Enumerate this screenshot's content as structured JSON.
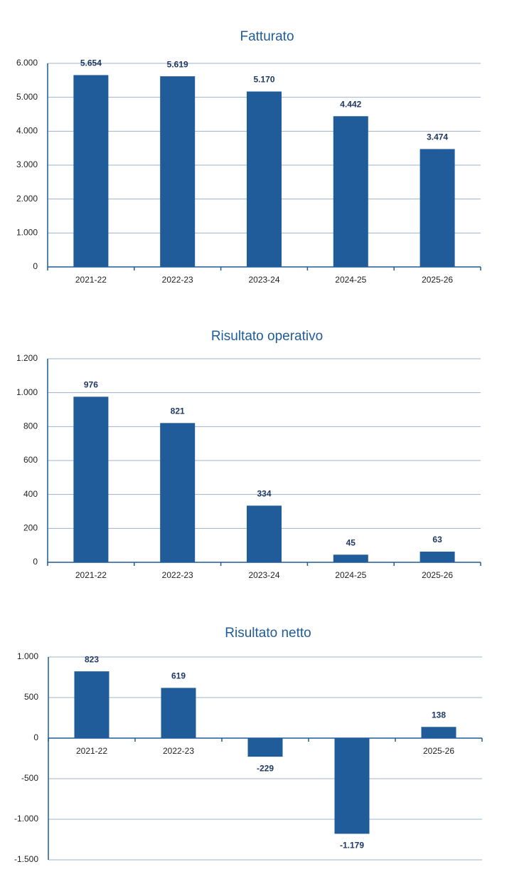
{
  "chart_data": [
    {
      "type": "bar",
      "title": "Fatturato",
      "categories": [
        "2021-22",
        "2022-23",
        "2023-24",
        "2024-25",
        "2025-26"
      ],
      "values": [
        5654,
        5619,
        5170,
        4442,
        3474
      ],
      "value_labels": [
        "5.654",
        "5.619",
        "5.170",
        "4.442",
        "3.474"
      ],
      "color": "#1f5c99",
      "ylim": [
        0,
        6000
      ],
      "yticks": [
        0,
        {
          "value": 1000,
          "label": "1.000"
        },
        {
          "value": 2000,
          "label": "2.000"
        },
        {
          "value": 3000,
          "label": "3.000"
        },
        {
          "value": 4000,
          "label": "4.000"
        },
        {
          "value": 5000,
          "label": "5.000"
        },
        {
          "value": 6000,
          "label": "6.000"
        }
      ],
      "grid": true
    },
    {
      "type": "bar",
      "title": "Risultato operativo",
      "categories": [
        "2021-22",
        "2022-23",
        "2023-24",
        "2024-25",
        "2025-26"
      ],
      "values": [
        976,
        821,
        334,
        45,
        63
      ],
      "color": "#1f5c99",
      "ylim": [
        0,
        1200
      ],
      "yticks": [
        0,
        200,
        400,
        600,
        800,
        {
          "value": 1000,
          "label": "1.000"
        },
        {
          "value": 1200,
          "label": "1.200"
        }
      ],
      "grid": true
    },
    {
      "type": "bar",
      "title": "Risultato netto",
      "categories": [
        "2021-22",
        "2022-23",
        null,
        null,
        "2025-26"
      ],
      "values": [
        823,
        619,
        -229,
        -1179,
        138
      ],
      "value_labels": [
        "823",
        "619",
        "-229",
        "-1.179",
        "138"
      ],
      "color": "#1f5c99",
      "ylim": [
        -1500,
        1000
      ],
      "yticks": [
        {
          "value": -1500,
          "label": "-1.500"
        },
        {
          "value": -1000,
          "label": "-1.000"
        },
        -500,
        0,
        500,
        {
          "value": 1000,
          "label": "1.000"
        }
      ],
      "grid": true
    }
  ]
}
